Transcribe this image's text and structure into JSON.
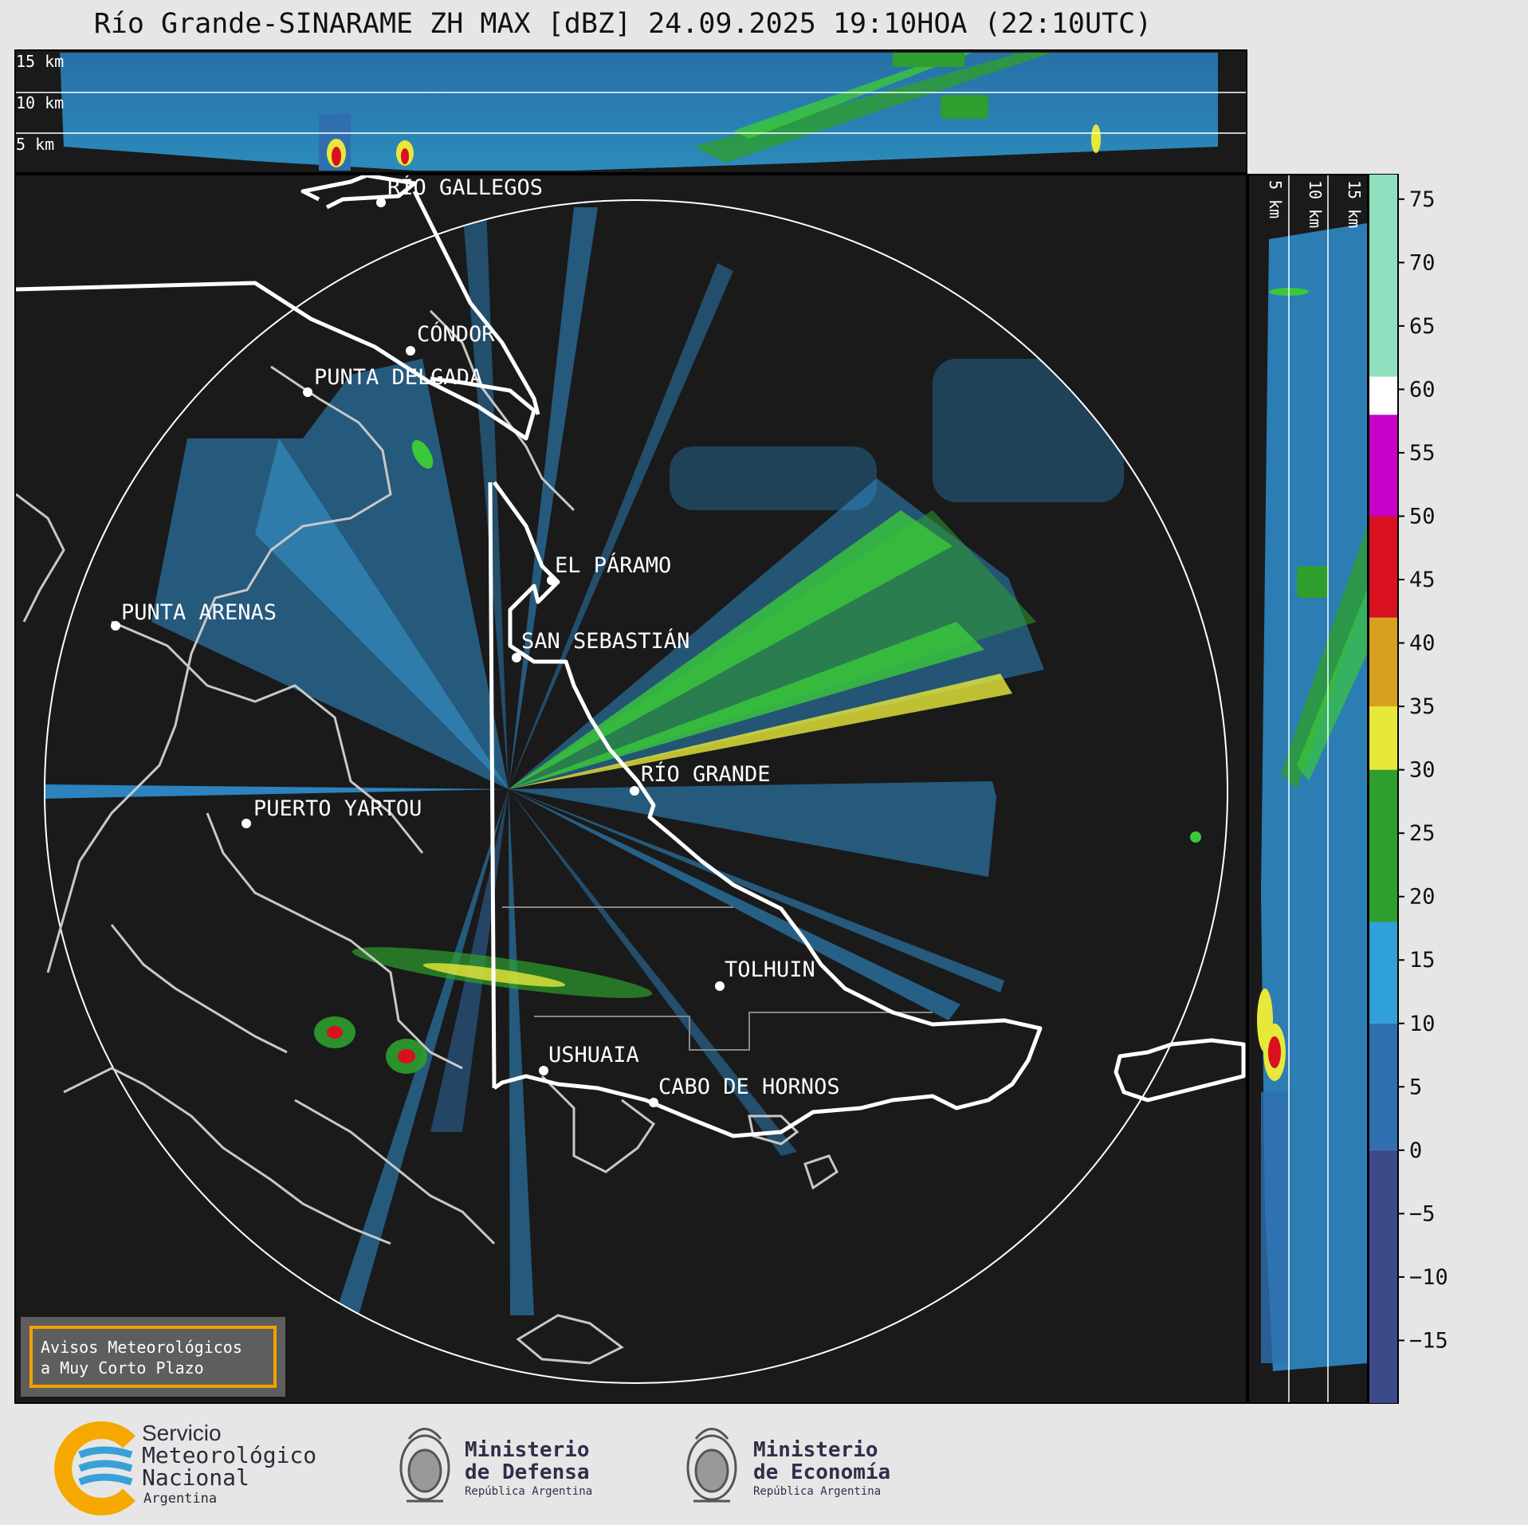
{
  "title": "Río Grande-SINARAME ZH MAX [dBZ] 24.09.2025 19:10HOA (22:10UTC)",
  "top_panel": {
    "height_labels": [
      "15 km",
      "10 km",
      "5 km"
    ]
  },
  "right_panel": {
    "height_labels": [
      "5 km",
      "10 km",
      "15 km"
    ]
  },
  "places": [
    {
      "name": "RÍO GALLEGOS"
    },
    {
      "name": "CÓNDOR"
    },
    {
      "name": "PUNTA DELGADA"
    },
    {
      "name": "EL PÁRAMO"
    },
    {
      "name": "SAN SEBASTIÁN"
    },
    {
      "name": "PUNTA ARENAS"
    },
    {
      "name": "RÍO GRANDE"
    },
    {
      "name": "PUERTO YARTOU"
    },
    {
      "name": "TOLHUIN"
    },
    {
      "name": "USHUAIA"
    },
    {
      "name": "CABO DE HORNOS"
    }
  ],
  "colorbar": {
    "unit": "dBZ",
    "range": [
      -20,
      77
    ],
    "ticks": [
      "75",
      "70",
      "65",
      "60",
      "55",
      "50",
      "45",
      "40",
      "35",
      "30",
      "25",
      "20",
      "15",
      "10",
      "5",
      "0",
      "−5",
      "−10",
      "−15"
    ],
    "tick_values": [
      75,
      70,
      65,
      60,
      55,
      50,
      45,
      40,
      35,
      30,
      25,
      20,
      15,
      10,
      5,
      0,
      -5,
      -10,
      -15
    ],
    "bands": [
      {
        "from": -20,
        "to": 0,
        "color": "#3d4a8a"
      },
      {
        "from": 0,
        "to": 10,
        "color": "#2f6fb0"
      },
      {
        "from": 10,
        "to": 18,
        "color": "#2fa0d8"
      },
      {
        "from": 18,
        "to": 30,
        "color": "#2e9e2e"
      },
      {
        "from": 30,
        "to": 35,
        "color": "#e8e83a"
      },
      {
        "from": 35,
        "to": 42,
        "color": "#d8a020"
      },
      {
        "from": 42,
        "to": 50,
        "color": "#d81020"
      },
      {
        "from": 50,
        "to": 58,
        "color": "#c800c8"
      },
      {
        "from": 58,
        "to": 61,
        "color": "#ffffff"
      },
      {
        "from": 61,
        "to": 77,
        "color": "#90e0c0"
      }
    ]
  },
  "notice": {
    "line1": "Avisos Meteorológicos",
    "line2": "a Muy Corto Plazo"
  },
  "logos": {
    "smn": {
      "line1": "Servicio",
      "line2": "Meteorológico",
      "line3": "Nacional",
      "line4": "Argentina"
    },
    "defensa": {
      "line1": "Ministerio",
      "line2": "de Defensa",
      "line3": "República Argentina"
    },
    "economia": {
      "line1": "Ministerio",
      "line2": "de Economía",
      "line3": "República Argentina"
    }
  },
  "colors": {
    "background": "#1a1a1a",
    "echo_weak": "#2f8fd0",
    "echo_moderate": "#3ac83a",
    "echo_strong": "#e8e83a",
    "echo_intense": "#d81020",
    "smn_orange": "#f5a800",
    "smn_blue": "#3aa0d8"
  }
}
